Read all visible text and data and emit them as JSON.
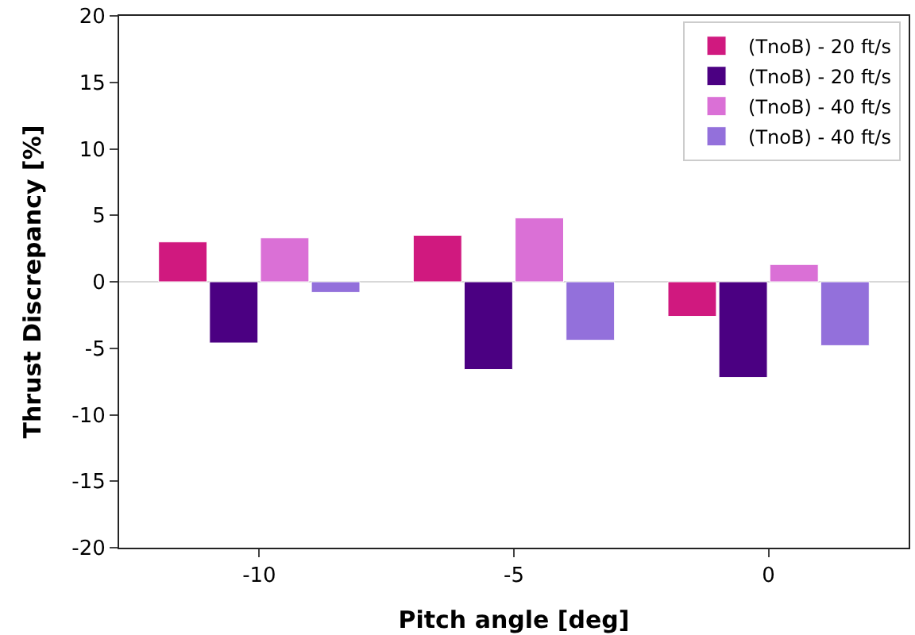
{
  "chart_data": {
    "type": "bar",
    "xlabel": "Pitch angle [deg]",
    "ylabel": "Thrust Discrepancy [%]",
    "categories": [
      "-10",
      "-5",
      "0"
    ],
    "series": [
      {
        "name": "(TnoB) - 20 ft/s",
        "color": "#d0197f",
        "values": [
          3.0,
          3.5,
          -2.6
        ]
      },
      {
        "name": "(TnoB) - 20 ft/s",
        "color": "#4b0082",
        "values": [
          -4.6,
          -6.6,
          -7.2
        ]
      },
      {
        "name": "(TnoB) - 40 ft/s",
        "color": "#da70d6",
        "values": [
          3.3,
          4.8,
          1.3
        ]
      },
      {
        "name": "(TnoB) - 40 ft/s",
        "color": "#9370db",
        "values": [
          -0.8,
          -4.4,
          -4.8
        ]
      }
    ],
    "ylim": [
      -20,
      20
    ],
    "yticks": [
      -20,
      -15,
      -10,
      -5,
      0,
      5,
      10,
      15,
      20
    ],
    "ref_lines": [
      {
        "axis": "y",
        "value": 0,
        "color": "#808080"
      }
    ],
    "legend": "top right"
  }
}
